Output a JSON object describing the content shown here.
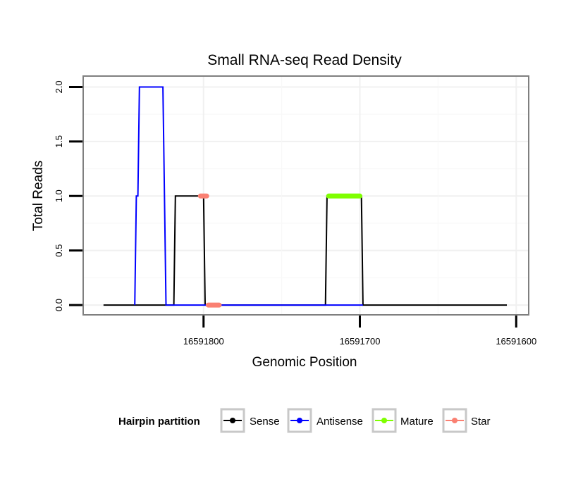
{
  "chart_data": {
    "type": "line",
    "title": "Small RNA-seq Read Density",
    "xlabel": "Genomic Position",
    "ylabel": "Total Reads",
    "x_reversed": true,
    "xlim": [
      16591877,
      16591592
    ],
    "ylim": [
      -0.09,
      2.1
    ],
    "x_ticks": [
      16591800,
      16591700,
      16591600
    ],
    "x_tick_labels": [
      "16591800",
      "16591700",
      "16591600"
    ],
    "y_ticks": [
      0,
      0.5,
      1,
      1.5,
      2
    ],
    "y_tick_labels": [
      "0.0",
      "0.5",
      "1.0",
      "1.5",
      "2.0"
    ],
    "grid": true,
    "legend": {
      "title": "Hairpin partition",
      "position": "bottom",
      "entries": [
        {
          "name": "Sense",
          "color": "#000000"
        },
        {
          "name": "Antisense",
          "color": "#0000ff"
        },
        {
          "name": "Mature",
          "color": "#7fff00"
        },
        {
          "name": "Star",
          "color": "#fa8072"
        }
      ]
    },
    "series": [
      {
        "name": "Sense",
        "color": "#000000",
        "points": [
          [
            16591864,
            0
          ],
          [
            16591824,
            0
          ],
          [
            16591823,
            0
          ],
          [
            16591819,
            0
          ],
          [
            16591818,
            1
          ],
          [
            16591800,
            1
          ],
          [
            16591799,
            0
          ],
          [
            16591722,
            0
          ],
          [
            16591721,
            1
          ],
          [
            16591699,
            1
          ],
          [
            16591698,
            0
          ],
          [
            16591606,
            0
          ]
        ]
      },
      {
        "name": "Antisense",
        "color": "#0000ff",
        "points": [
          [
            16591844,
            0
          ],
          [
            16591843,
            1
          ],
          [
            16591842,
            1
          ],
          [
            16591841,
            2
          ],
          [
            16591826,
            2
          ],
          [
            16591824,
            0
          ],
          [
            16591799,
            0
          ],
          [
            16591721,
            0
          ],
          [
            16591698,
            0
          ]
        ]
      },
      {
        "name": "Mature",
        "color": "#7fff00",
        "thick": true,
        "points": [
          [
            16591720,
            1
          ],
          [
            16591700,
            1
          ]
        ]
      },
      {
        "name": "Star",
        "color": "#fa8072",
        "thick": true,
        "points": [
          [
            16591802,
            1
          ],
          [
            16591798,
            1
          ]
        ],
        "points2": [
          [
            16591797,
            0
          ],
          [
            16591790,
            0
          ]
        ]
      }
    ]
  }
}
